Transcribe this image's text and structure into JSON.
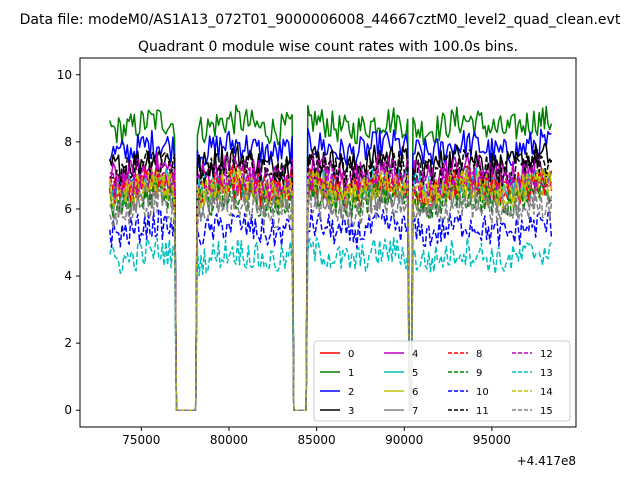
{
  "figure": {
    "suptitle": "Data file: modeM0/AS1A13_072T01_9000006008_44667cztM0_level2_quad_clean.evt",
    "title": "Quadrant 0 module wise count rates with 100.0s bins.",
    "offset_label": "+4.417e8"
  },
  "chart_data": {
    "type": "line",
    "title": "Quadrant 0 module wise count rates with 100.0s bins.",
    "xlabel": "",
    "ylabel": "",
    "x_offset": 441700000,
    "xlim": [
      71500,
      99800
    ],
    "ylim": [
      -0.5,
      10.5
    ],
    "xticks": [
      75000,
      80000,
      85000,
      90000,
      95000
    ],
    "xtick_labels": [
      "75000",
      "80000",
      "85000",
      "90000",
      "95000"
    ],
    "yticks": [
      0,
      2,
      4,
      6,
      8,
      10
    ],
    "ytick_labels": [
      "0",
      "2",
      "4",
      "6",
      "8",
      "10"
    ],
    "grid": false,
    "legend_position": "lower-right",
    "x_start": 73200,
    "x_end": 98400,
    "bin_width_s": 100,
    "zero_intervals": [
      [
        77000,
        78150
      ],
      [
        83700,
        84400
      ],
      [
        90300,
        90450
      ]
    ],
    "series": [
      {
        "name": "0",
        "color": "#ff0000",
        "dash": "solid",
        "mean": 6.6
      },
      {
        "name": "1",
        "color": "#008000",
        "dash": "solid",
        "mean": 8.5
      },
      {
        "name": "2",
        "color": "#0000ff",
        "dash": "solid",
        "mean": 7.8
      },
      {
        "name": "3",
        "color": "#000000",
        "dash": "solid",
        "mean": 7.4
      },
      {
        "name": "4",
        "color": "#bf00bf",
        "dash": "solid",
        "mean": 7.1
      },
      {
        "name": "5",
        "color": "#00bfbf",
        "dash": "solid",
        "mean": 6.7
      },
      {
        "name": "6",
        "color": "#bfbf00",
        "dash": "solid",
        "mean": 6.6
      },
      {
        "name": "7",
        "color": "#808080",
        "dash": "solid",
        "mean": 6.3
      },
      {
        "name": "8",
        "color": "#ff0000",
        "dash": "dashed",
        "mean": 6.7
      },
      {
        "name": "9",
        "color": "#008000",
        "dash": "dashed",
        "mean": 6.3
      },
      {
        "name": "10",
        "color": "#0000ff",
        "dash": "dashed",
        "mean": 5.4
      },
      {
        "name": "11",
        "color": "#000000",
        "dash": "dashed",
        "mean": 7.2
      },
      {
        "name": "12",
        "color": "#bf00bf",
        "dash": "dashed",
        "mean": 6.8
      },
      {
        "name": "13",
        "color": "#00bfbf",
        "dash": "dashed",
        "mean": 4.6
      },
      {
        "name": "14",
        "color": "#bfbf00",
        "dash": "dashed",
        "mean": 6.6
      },
      {
        "name": "15",
        "color": "#808080",
        "dash": "dashed",
        "mean": 6.0
      }
    ]
  }
}
